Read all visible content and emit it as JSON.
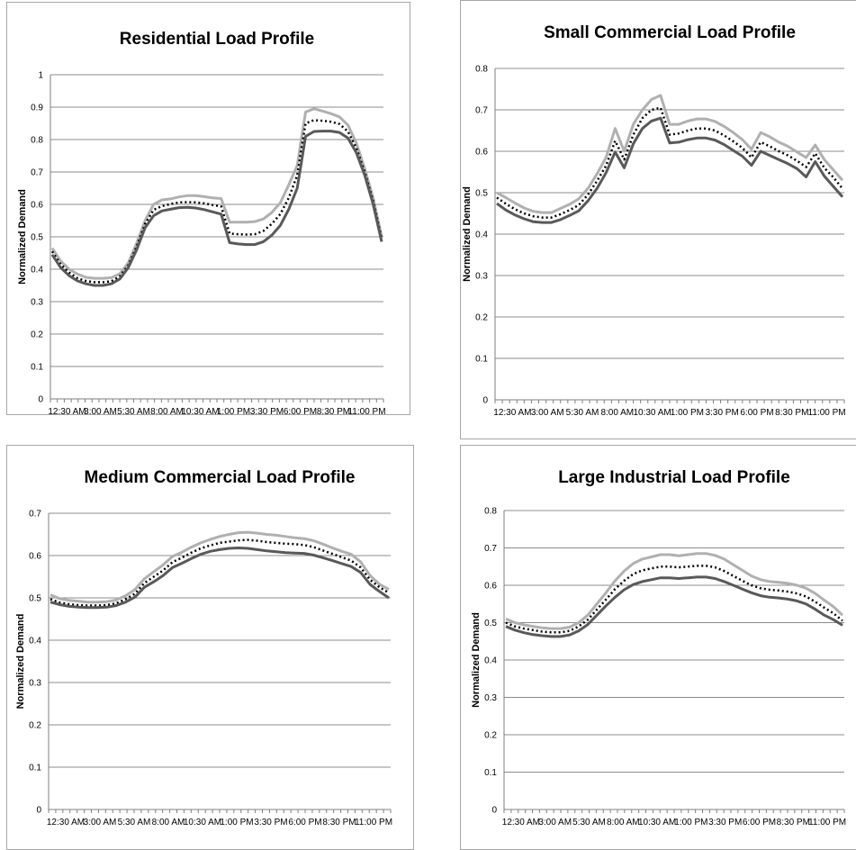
{
  "chart_data": [
    {
      "type": "line",
      "title": "Residential Load Profile",
      "xlabel": "",
      "ylabel": "Normalized Demand",
      "ylim": [
        0,
        1
      ],
      "y_ticks": [
        "0",
        "0.1",
        "0.2",
        "0.3",
        "0.4",
        "0.5",
        "0.6",
        "0.7",
        "0.8",
        "0.9",
        "1"
      ],
      "x_tick_labels": [
        "12:30 AM",
        "3:00 AM",
        "5:30 AM",
        "8:00 AM",
        "10:30 AM",
        "1:00 PM",
        "3:30 PM",
        "6:00 PM",
        "8:30 PM",
        "11:00 PM"
      ],
      "grid": true,
      "legend": "none",
      "series": [
        {
          "color": "#b0b0b0",
          "style": "solid",
          "values": [
            0.465,
            0.425,
            0.4,
            0.385,
            0.375,
            0.372,
            0.372,
            0.374,
            0.386,
            0.42,
            0.48,
            0.55,
            0.6,
            0.614,
            0.617,
            0.623,
            0.627,
            0.627,
            0.624,
            0.62,
            0.618,
            0.545,
            0.545,
            0.545,
            0.547,
            0.555,
            0.575,
            0.605,
            0.66,
            0.72,
            0.885,
            0.895,
            0.888,
            0.88,
            0.87,
            0.845,
            0.79,
            0.71,
            0.62,
            0.5
          ]
        },
        {
          "color": "#000000",
          "style": "dotted",
          "values": [
            0.455,
            0.415,
            0.39,
            0.372,
            0.364,
            0.36,
            0.36,
            0.363,
            0.378,
            0.412,
            0.47,
            0.54,
            0.583,
            0.595,
            0.601,
            0.606,
            0.607,
            0.606,
            0.603,
            0.598,
            0.594,
            0.51,
            0.508,
            0.507,
            0.508,
            0.518,
            0.54,
            0.57,
            0.62,
            0.69,
            0.85,
            0.86,
            0.858,
            0.855,
            0.848,
            0.825,
            0.775,
            0.7,
            0.61,
            0.495
          ]
        },
        {
          "color": "#595959",
          "style": "solid",
          "values": [
            0.445,
            0.405,
            0.38,
            0.364,
            0.355,
            0.35,
            0.35,
            0.355,
            0.37,
            0.405,
            0.46,
            0.528,
            0.565,
            0.58,
            0.585,
            0.59,
            0.591,
            0.589,
            0.584,
            0.577,
            0.57,
            0.482,
            0.478,
            0.476,
            0.476,
            0.485,
            0.505,
            0.535,
            0.585,
            0.65,
            0.81,
            0.825,
            0.826,
            0.826,
            0.822,
            0.805,
            0.76,
            0.69,
            0.6,
            0.485
          ]
        }
      ]
    },
    {
      "type": "line",
      "title": "Small Commercial Load Profile",
      "xlabel": "",
      "ylabel": "Normalized Demand",
      "ylim": [
        0,
        0.8
      ],
      "y_ticks": [
        "0",
        "0.1",
        "0.2",
        "0.3",
        "0.4",
        "0.5",
        "0.6",
        "0.7",
        "0.8"
      ],
      "x_tick_labels": [
        "12:30 AM",
        "3:00 AM",
        "5:30 AM",
        "8:00 AM",
        "10:30 AM",
        "1:00 PM",
        "3:30 PM",
        "6:00 PM",
        "8:30 PM",
        "11:00 PM"
      ],
      "grid": true,
      "legend": "none",
      "series": [
        {
          "color": "#b0b0b0",
          "style": "solid",
          "values": [
            0.5,
            0.488,
            0.475,
            0.463,
            0.455,
            0.452,
            0.452,
            0.462,
            0.472,
            0.485,
            0.51,
            0.545,
            0.585,
            0.655,
            0.6,
            0.665,
            0.7,
            0.725,
            0.735,
            0.665,
            0.665,
            0.673,
            0.678,
            0.678,
            0.672,
            0.66,
            0.645,
            0.628,
            0.605,
            0.645,
            0.635,
            0.622,
            0.612,
            0.598,
            0.585,
            0.615,
            0.58,
            0.555,
            0.53
          ]
        },
        {
          "color": "#000000",
          "style": "dotted",
          "values": [
            0.488,
            0.473,
            0.46,
            0.45,
            0.443,
            0.44,
            0.44,
            0.448,
            0.458,
            0.47,
            0.495,
            0.528,
            0.565,
            0.625,
            0.58,
            0.64,
            0.68,
            0.7,
            0.705,
            0.64,
            0.643,
            0.65,
            0.655,
            0.655,
            0.65,
            0.638,
            0.624,
            0.608,
            0.585,
            0.622,
            0.612,
            0.6,
            0.59,
            0.577,
            0.562,
            0.595,
            0.56,
            0.537,
            0.51
          ]
        },
        {
          "color": "#595959",
          "style": "solid",
          "values": [
            0.474,
            0.458,
            0.446,
            0.437,
            0.43,
            0.428,
            0.428,
            0.435,
            0.445,
            0.456,
            0.48,
            0.51,
            0.548,
            0.598,
            0.56,
            0.618,
            0.655,
            0.673,
            0.68,
            0.62,
            0.622,
            0.628,
            0.632,
            0.632,
            0.627,
            0.616,
            0.602,
            0.588,
            0.566,
            0.6,
            0.59,
            0.58,
            0.57,
            0.558,
            0.538,
            0.575,
            0.54,
            0.515,
            0.49
          ]
        }
      ]
    },
    {
      "type": "line",
      "title": "Medium Commercial Load Profile",
      "xlabel": "",
      "ylabel": "Normalized Demand",
      "ylim": [
        0,
        0.7
      ],
      "y_ticks": [
        "0",
        "0.1",
        "0.2",
        "0.3",
        "0.4",
        "0.5",
        "0.6",
        "0.7"
      ],
      "x_tick_labels": [
        "12:30 AM",
        "3:00 AM",
        "5:30 AM",
        "8:00 AM",
        "10:30 AM",
        "1:00 PM",
        "3:30 PM",
        "6:00 PM",
        "8:30 PM",
        "11:00 PM"
      ],
      "grid": true,
      "legend": "none",
      "series": [
        {
          "color": "#b0b0b0",
          "style": "solid",
          "values": [
            0.507,
            0.498,
            0.494,
            0.492,
            0.49,
            0.49,
            0.491,
            0.495,
            0.505,
            0.52,
            0.545,
            0.562,
            0.578,
            0.598,
            0.608,
            0.62,
            0.63,
            0.638,
            0.645,
            0.65,
            0.654,
            0.655,
            0.653,
            0.65,
            0.648,
            0.645,
            0.642,
            0.64,
            0.635,
            0.627,
            0.618,
            0.61,
            0.603,
            0.585,
            0.553,
            0.532,
            0.52
          ]
        },
        {
          "color": "#000000",
          "style": "dotted",
          "values": [
            0.497,
            0.489,
            0.485,
            0.483,
            0.482,
            0.482,
            0.483,
            0.487,
            0.497,
            0.51,
            0.535,
            0.55,
            0.565,
            0.585,
            0.595,
            0.607,
            0.617,
            0.624,
            0.63,
            0.633,
            0.636,
            0.637,
            0.635,
            0.632,
            0.63,
            0.628,
            0.627,
            0.625,
            0.62,
            0.612,
            0.604,
            0.596,
            0.588,
            0.572,
            0.543,
            0.525,
            0.512
          ]
        },
        {
          "color": "#595959",
          "style": "solid",
          "values": [
            0.49,
            0.484,
            0.48,
            0.478,
            0.477,
            0.477,
            0.478,
            0.482,
            0.49,
            0.502,
            0.525,
            0.538,
            0.553,
            0.572,
            0.582,
            0.593,
            0.603,
            0.61,
            0.614,
            0.617,
            0.618,
            0.617,
            0.614,
            0.611,
            0.609,
            0.607,
            0.606,
            0.605,
            0.601,
            0.595,
            0.588,
            0.581,
            0.574,
            0.56,
            0.532,
            0.515,
            0.5
          ]
        }
      ]
    },
    {
      "type": "line",
      "title": "Large Industrial Load Profile",
      "xlabel": "",
      "ylabel": "Normalized Demand",
      "ylim": [
        0,
        0.8
      ],
      "y_ticks": [
        "0",
        "0.1",
        "0.2",
        "0.3",
        "0.4",
        "0.5",
        "0.6",
        "0.7",
        "0.8"
      ],
      "x_tick_labels": [
        "12:30 AM",
        "3:00 AM",
        "5:30 AM",
        "8:00 AM",
        "10:30 AM",
        "1:00 PM",
        "3:30 PM",
        "6:00 PM",
        "8:30 PM",
        "11:00 PM"
      ],
      "grid": true,
      "legend": "none",
      "series": [
        {
          "color": "#b0b0b0",
          "style": "solid",
          "values": [
            0.51,
            0.5,
            0.494,
            0.49,
            0.486,
            0.484,
            0.484,
            0.488,
            0.5,
            0.52,
            0.55,
            0.58,
            0.612,
            0.638,
            0.658,
            0.67,
            0.676,
            0.682,
            0.682,
            0.679,
            0.682,
            0.685,
            0.685,
            0.68,
            0.67,
            0.655,
            0.64,
            0.625,
            0.615,
            0.61,
            0.608,
            0.605,
            0.6,
            0.592,
            0.578,
            0.56,
            0.543,
            0.52
          ]
        },
        {
          "color": "#000000",
          "style": "dotted",
          "values": [
            0.5,
            0.49,
            0.484,
            0.48,
            0.476,
            0.474,
            0.474,
            0.478,
            0.49,
            0.508,
            0.535,
            0.562,
            0.59,
            0.612,
            0.63,
            0.64,
            0.645,
            0.65,
            0.65,
            0.648,
            0.65,
            0.652,
            0.652,
            0.648,
            0.638,
            0.625,
            0.612,
            0.6,
            0.592,
            0.588,
            0.586,
            0.583,
            0.578,
            0.57,
            0.556,
            0.54,
            0.525,
            0.505
          ]
        },
        {
          "color": "#595959",
          "style": "solid",
          "values": [
            0.49,
            0.48,
            0.473,
            0.468,
            0.465,
            0.463,
            0.463,
            0.467,
            0.478,
            0.495,
            0.52,
            0.545,
            0.568,
            0.588,
            0.602,
            0.61,
            0.615,
            0.62,
            0.62,
            0.618,
            0.62,
            0.622,
            0.622,
            0.618,
            0.61,
            0.6,
            0.59,
            0.58,
            0.572,
            0.568,
            0.566,
            0.563,
            0.558,
            0.55,
            0.536,
            0.52,
            0.508,
            0.493
          ]
        }
      ]
    }
  ]
}
